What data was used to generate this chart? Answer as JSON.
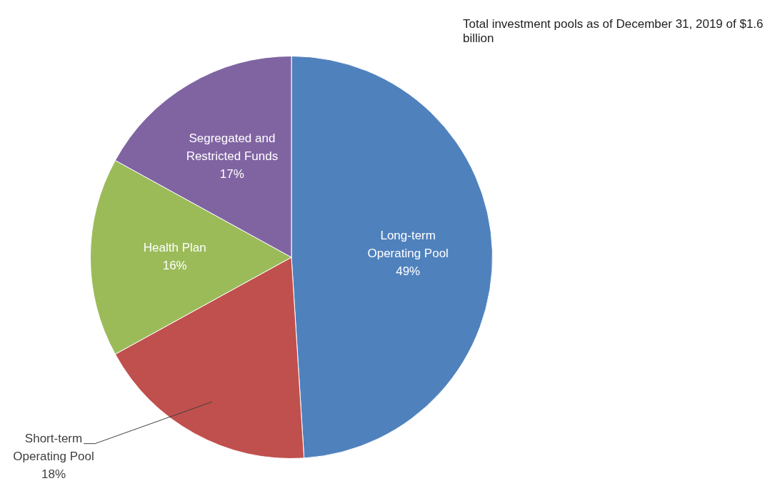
{
  "chart_data": {
    "type": "pie",
    "title": "Total investment pools as of December 31, 2019 of $1.6 billion",
    "categories": [
      "Long-term Operating Pool",
      "Short-term Operating Pool",
      "Health Plan",
      "Segregated and Restricted Funds"
    ],
    "values": [
      49,
      18,
      16,
      17
    ],
    "value_labels": [
      "49%",
      "18%",
      "16%",
      "17%"
    ],
    "colors": [
      "#4f81bd",
      "#c0504d",
      "#9bbb59",
      "#8064a2"
    ],
    "legend": false
  }
}
